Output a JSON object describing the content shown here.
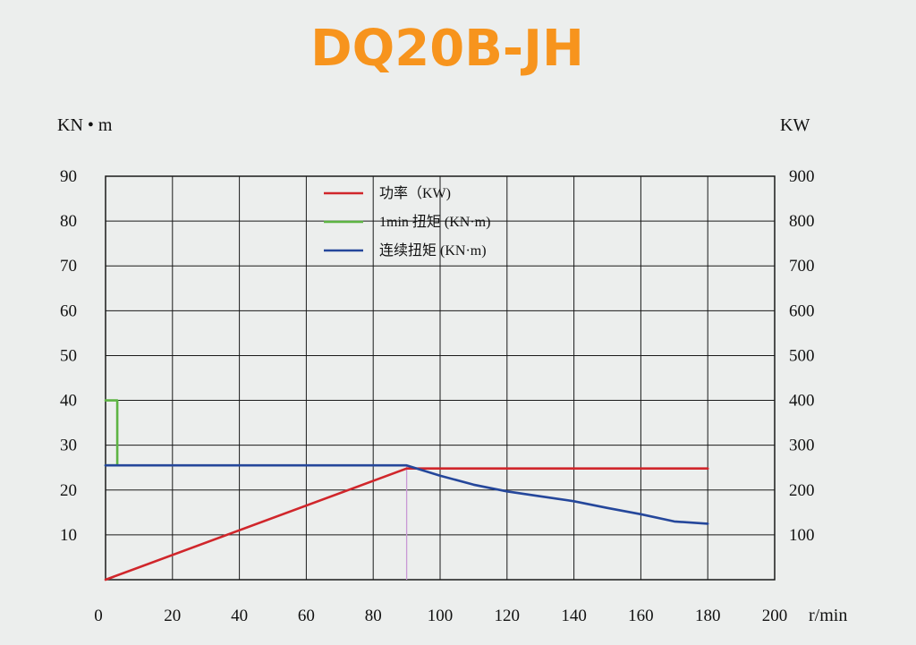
{
  "title": "DQ20B-JH",
  "chart_data": {
    "type": "line",
    "title": "DQ20B-JH",
    "left_unit": "KN • m",
    "right_unit": "KW",
    "x_unit": "r/min",
    "xlim": [
      0,
      200
    ],
    "ylim_left": [
      0,
      90
    ],
    "ylim_right": [
      0,
      900
    ],
    "x_ticks": [
      "0",
      "20",
      "40",
      "60",
      "80",
      "100",
      "120",
      "140",
      "160",
      "180",
      "200"
    ],
    "y_ticks_left": [
      "90",
      "80",
      "70",
      "60",
      "50",
      "40",
      "30",
      "20",
      "10"
    ],
    "y_ticks_right": [
      "900",
      "800",
      "700",
      "600",
      "500",
      "400",
      "300",
      "200",
      "100"
    ],
    "grid": true,
    "legend_position": "top-center",
    "series": [
      {
        "name": "功率（KW)",
        "color": "#d0262b",
        "axis": "right",
        "points": [
          [
            0,
            0
          ],
          [
            90,
            248
          ],
          [
            180,
            248
          ]
        ]
      },
      {
        "name": "1min 扭矩 (KN·m)",
        "color": "#5db443",
        "axis": "left",
        "points": [
          [
            0,
            40
          ],
          [
            3.5,
            40
          ],
          [
            3.5,
            25.5
          ],
          [
            0,
            25.5
          ]
        ]
      },
      {
        "name": "连续扭矩 (KN·m)",
        "color": "#25479b",
        "axis": "left",
        "points": [
          [
            0,
            25.5
          ],
          [
            90,
            25.5
          ],
          [
            100,
            23.2
          ],
          [
            110,
            21.2
          ],
          [
            120,
            19.7
          ],
          [
            130,
            18.6
          ],
          [
            140,
            17.5
          ],
          [
            150,
            16
          ],
          [
            160,
            14.6
          ],
          [
            170,
            13
          ],
          [
            180,
            12.5
          ]
        ]
      }
    ],
    "reference_line": {
      "x": 90,
      "color": "#c999d4"
    }
  }
}
